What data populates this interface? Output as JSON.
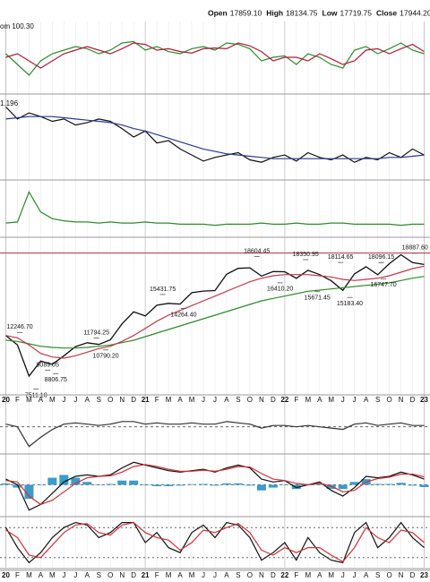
{
  "header": [
    {
      "label": "Open",
      "value": "17859.10"
    },
    {
      "label": "High",
      "value": "18134.75"
    },
    {
      "label": "Low",
      "value": "17719.75"
    },
    {
      "label": "Close",
      "value": "17944.20"
    },
    {
      "label": "Chg",
      "value": ""
    }
  ],
  "panel_labels": [
    "om 100.30",
    "1.196"
  ],
  "chart_data": [
    {
      "type": "line",
      "ylim": [
        0,
        100
      ],
      "series": [
        {
          "color": "#2e8b2e",
          "values": [
            55,
            40,
            25,
            45,
            55,
            60,
            65,
            62,
            55,
            60,
            70,
            72,
            60,
            65,
            58,
            55,
            62,
            65,
            60,
            70,
            68,
            62,
            45,
            50,
            52,
            40,
            55,
            50,
            40,
            35,
            60,
            65,
            55,
            62,
            70,
            60,
            55
          ]
        },
        {
          "color": "#b01c3c",
          "values": [
            50,
            55,
            45,
            35,
            45,
            55,
            60,
            65,
            60,
            55,
            62,
            70,
            68,
            60,
            62,
            58,
            56,
            62,
            63,
            62,
            70,
            66,
            58,
            45,
            50,
            50,
            45,
            55,
            48,
            40,
            45,
            60,
            62,
            55,
            62,
            68,
            58
          ]
        }
      ]
    },
    {
      "type": "line",
      "ylim": [
        0.7,
        1.4
      ],
      "series": [
        {
          "color": "#111111",
          "values": [
            1.3,
            1.2,
            1.25,
            1.22,
            1.18,
            1.2,
            1.15,
            1.17,
            1.2,
            1.18,
            1.12,
            1.05,
            1.1,
            1.0,
            1.02,
            0.95,
            0.9,
            0.85,
            0.88,
            0.9,
            0.92,
            0.86,
            0.84,
            0.88,
            0.9,
            0.85,
            0.92,
            0.88,
            0.86,
            0.9,
            0.84,
            0.88,
            0.86,
            0.92,
            0.88,
            0.95,
            0.9
          ]
        },
        {
          "color": "#2b3a8c",
          "values": [
            1.2,
            1.21,
            1.22,
            1.22,
            1.22,
            1.21,
            1.2,
            1.19,
            1.18,
            1.17,
            1.15,
            1.12,
            1.1,
            1.07,
            1.04,
            1.01,
            0.98,
            0.95,
            0.93,
            0.91,
            0.9,
            0.89,
            0.88,
            0.87,
            0.87,
            0.87,
            0.87,
            0.87,
            0.87,
            0.87,
            0.87,
            0.87,
            0.87,
            0.88,
            0.88,
            0.89,
            0.9
          ]
        }
      ]
    },
    {
      "type": "line",
      "ylim": [
        0,
        50
      ],
      "series": [
        {
          "color": "#2e8b2e",
          "values": [
            12,
            13,
            40,
            22,
            16,
            14,
            13,
            13,
            12,
            13,
            12,
            12,
            13,
            12,
            12,
            11,
            11,
            11,
            10,
            11,
            11,
            11,
            12,
            11,
            11,
            12,
            11,
            11,
            12,
            12,
            11,
            11,
            11,
            11,
            10,
            11,
            11
          ]
        }
      ]
    },
    {
      "type": "line",
      "ylim": [
        7100,
        20150
      ],
      "xlim": [
        -0.5,
        36.5
      ],
      "categories": [
        "20",
        "F",
        "M",
        "A",
        "M",
        "J",
        "J",
        "A",
        "S",
        "O",
        "N",
        "D",
        "21",
        "F",
        "M",
        "A",
        "M",
        "J",
        "J",
        "A",
        "S",
        "O",
        "N",
        "D",
        "22",
        "F",
        "M",
        "A",
        "M",
        "J",
        "J",
        "A",
        "S",
        "O",
        "N",
        "D",
        "23"
      ],
      "hline": 18900,
      "series": [
        {
          "color": "#111111",
          "values": [
            12000,
            11200,
            8600,
            9860,
            9580,
            10300,
            11070,
            11390,
            11250,
            11640,
            12970,
            13980,
            13630,
            14530,
            14690,
            14630,
            15580,
            15720,
            15760,
            17130,
            17620,
            17670,
            16980,
            17350,
            17340,
            16790,
            17460,
            17100,
            16580,
            15780,
            17160,
            17760,
            17090,
            18010,
            18760,
            18100,
            17944
          ]
        },
        {
          "color": "#2e8b2e",
          "values": [
            11600,
            11500,
            11300,
            11100,
            11000,
            10950,
            10950,
            11000,
            11100,
            11200,
            11400,
            11600,
            11900,
            12200,
            12500,
            12800,
            13100,
            13400,
            13700,
            14000,
            14300,
            14600,
            14900,
            15100,
            15300,
            15500,
            15700,
            15800,
            15900,
            16000,
            16100,
            16200,
            16300,
            16400,
            16600,
            16800,
            16950
          ]
        },
        {
          "color": "#c0394a",
          "values": [
            12000,
            11800,
            11200,
            10500,
            10200,
            10100,
            10300,
            10600,
            10900,
            11100,
            11500,
            12000,
            12600,
            13200,
            13700,
            14100,
            14500,
            14900,
            15300,
            15700,
            16100,
            16500,
            16800,
            17000,
            17100,
            17100,
            17100,
            17000,
            16900,
            16700,
            16600,
            16700,
            16800,
            17000,
            17300,
            17600,
            17800
          ]
        }
      ],
      "annotations": [
        {
          "text": "12246.70",
          "value": 12246.7,
          "x": 1.2,
          "position": "above"
        },
        {
          "text": "7511.10",
          "value": 7511.1,
          "x": 2.6,
          "position": "below"
        },
        {
          "text": "8806.75",
          "value": 8806.75,
          "x": 4.3,
          "position": "below"
        },
        {
          "text": "9089.05",
          "value": 9089.05,
          "x": 3.6,
          "position": "above"
        },
        {
          "text": "10790.20",
          "value": 10790.2,
          "x": 8.6,
          "position": "below"
        },
        {
          "text": "11794.25",
          "value": 11794.25,
          "x": 7.8,
          "position": "above"
        },
        {
          "text": "14264.40",
          "value": 14264.4,
          "x": 15.3,
          "position": "below"
        },
        {
          "text": "15431.75",
          "value": 15431.75,
          "x": 13.5,
          "position": "above"
        },
        {
          "text": "18604.45",
          "value": 18604.45,
          "x": 21.6,
          "position": "above"
        },
        {
          "text": "16410.20",
          "value": 16410.2,
          "x": 23.6,
          "position": "below"
        },
        {
          "text": "18350.95",
          "value": 18350.95,
          "x": 25.8,
          "position": "above"
        },
        {
          "text": "15671.45",
          "value": 15671.45,
          "x": 26.8,
          "position": "below"
        },
        {
          "text": "18114.65",
          "value": 18114.65,
          "x": 28.8,
          "position": "above"
        },
        {
          "text": "15183.40",
          "value": 15183.4,
          "x": 29.6,
          "position": "below"
        },
        {
          "text": "16747.70",
          "value": 16747.7,
          "x": 32.5,
          "position": "below"
        },
        {
          "text": "18096.15",
          "value": 18096.15,
          "x": 32.3,
          "position": "above"
        },
        {
          "text": "18887.60",
          "value": 18887.6,
          "x": 35.2,
          "position": "above"
        }
      ]
    },
    {
      "type": "line",
      "ylim": [
        -20,
        10
      ],
      "series": [
        {
          "color": "#333333",
          "values": [
            2,
            0,
            -15,
            -8,
            -2,
            2,
            3,
            2,
            1,
            2,
            4,
            4,
            2,
            3,
            2,
            2,
            3,
            2,
            2,
            4,
            3,
            2,
            -1,
            1,
            1,
            0,
            1,
            0,
            -1,
            -2,
            2,
            3,
            1,
            2,
            3,
            1,
            1
          ]
        }
      ]
    },
    {
      "type": "line",
      "ylim": [
        -1100,
        1000
      ],
      "histogram": {
        "color": "#3b9cc8",
        "values": [
          50,
          -100,
          -500,
          0,
          250,
          350,
          250,
          100,
          0,
          30,
          150,
          150,
          -20,
          -50,
          -50,
          -30,
          20,
          30,
          -30,
          50,
          50,
          -30,
          -200,
          -100,
          0,
          -150,
          0,
          50,
          -150,
          -150,
          100,
          200,
          30,
          30,
          70,
          -30,
          -80
        ]
      },
      "series": [
        {
          "color": "#111111",
          "values": [
            200,
            0,
            -900,
            -700,
            -300,
            100,
            300,
            350,
            300,
            350,
            600,
            800,
            700,
            600,
            500,
            450,
            500,
            550,
            450,
            600,
            700,
            600,
            200,
            100,
            150,
            -100,
            0,
            100,
            -200,
            -400,
            -100,
            300,
            250,
            300,
            450,
            350,
            200
          ]
        },
        {
          "color": "#d0303a",
          "values": [
            150,
            100,
            -400,
            -700,
            -550,
            -250,
            50,
            250,
            300,
            320,
            450,
            650,
            720,
            650,
            550,
            480,
            480,
            520,
            480,
            550,
            650,
            630,
            400,
            200,
            150,
            50,
            0,
            50,
            -50,
            -250,
            -200,
            100,
            220,
            270,
            380,
            380,
            280
          ]
        }
      ]
    },
    {
      "type": "line",
      "ylim": [
        0,
        100
      ],
      "hlines": [
        20,
        80
      ],
      "series": [
        {
          "color": "#111111",
          "values": [
            80,
            40,
            10,
            30,
            60,
            80,
            90,
            85,
            60,
            70,
            90,
            90,
            50,
            70,
            40,
            30,
            70,
            85,
            60,
            90,
            85,
            60,
            15,
            30,
            50,
            15,
            60,
            30,
            15,
            10,
            70,
            90,
            40,
            60,
            90,
            60,
            40
          ]
        },
        {
          "color": "#d0303a",
          "values": [
            75,
            60,
            25,
            20,
            45,
            70,
            85,
            88,
            70,
            65,
            85,
            90,
            70,
            60,
            55,
            35,
            50,
            75,
            70,
            80,
            88,
            70,
            35,
            25,
            40,
            30,
            40,
            40,
            25,
            12,
            40,
            80,
            60,
            50,
            75,
            70,
            50
          ]
        }
      ]
    }
  ]
}
